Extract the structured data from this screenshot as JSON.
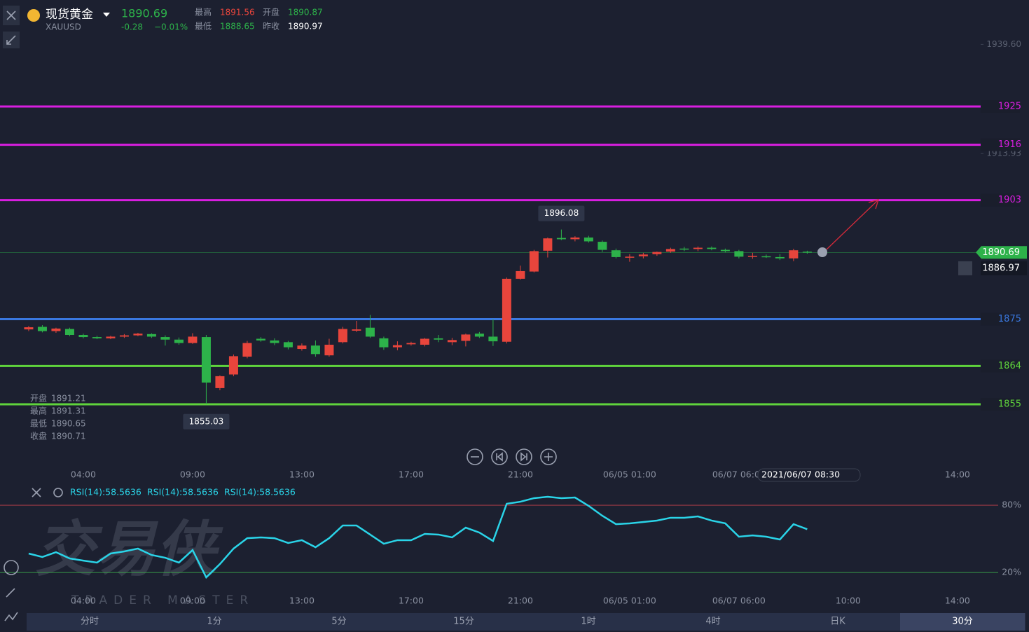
{
  "header": {
    "symbol": "现货黄金",
    "code": "XAUUSD",
    "change": -0.28,
    "change_pct": "−0.01%",
    "high_label": "最高",
    "high": 1891.56,
    "open_label": "开盘",
    "open": 1890.87,
    "low_label": "最低",
    "low": 1888.65,
    "prev_close_label": "昨收",
    "prev_close": 1890.97
  },
  "info": {
    "open_label": "开盘",
    "open": 1891.21,
    "high_label": "最高",
    "high": 1891.31,
    "low_label": "最低",
    "low": 1890.65,
    "close_label": "收盘",
    "close": 1890.71
  },
  "watermark": {
    "title": "交易侠",
    "subtitle": "TRADER MASTER"
  },
  "chart_data": {
    "type": "candlestick",
    "up_color": "#e8453c",
    "down_color": "#2db24a",
    "xlim": [
      -2.1,
      69.7
    ],
    "ylim": [
      1840.5,
      1950.04
    ],
    "xticks": [
      {
        "value": 4,
        "label": "04:00"
      },
      {
        "value": 12,
        "label": "09:00"
      },
      {
        "value": 20,
        "label": "13:00"
      },
      {
        "value": 28,
        "label": "17:00"
      },
      {
        "value": 36,
        "label": "21:00"
      },
      {
        "value": 44,
        "label": "06/05 01:00"
      },
      {
        "value": 52,
        "label": "06/07 06:00"
      },
      {
        "value": 60,
        "label": "10:00"
      },
      {
        "value": 68,
        "label": "14:00"
      }
    ],
    "yticks": [
      {
        "value": 1939.6,
        "label": "1939.60"
      },
      1913.93
    ],
    "last_price": 1890.69,
    "alert_price": 1886.97,
    "crosshair_label": "2021/06/07 08:30",
    "levels": [
      {
        "value": 1925,
        "color": "#d81ee0"
      },
      {
        "value": 1916,
        "color": "#d81ee0"
      },
      {
        "value": 1903,
        "color": "#d81ee0"
      },
      {
        "value": 1875,
        "color": "#3a78e0"
      },
      {
        "value": 1864,
        "color": "#5fd43c"
      },
      {
        "value": 1855,
        "color": "#5fd43c"
      }
    ],
    "annotations": [
      {
        "index": 39,
        "value": 1896.08
      },
      {
        "index": 13,
        "value": 1855.03
      }
    ],
    "ohlc": [
      [
        1872.6,
        1873.4,
        1872.2,
        1873.1
      ],
      [
        1873.2,
        1873.6,
        1871.9,
        1872.2
      ],
      [
        1872.2,
        1873.0,
        1871.8,
        1872.8
      ],
      [
        1872.7,
        1873.0,
        1871.0,
        1871.3
      ],
      [
        1871.3,
        1871.6,
        1870.5,
        1870.8
      ],
      [
        1870.8,
        1871.1,
        1870.3,
        1870.5
      ],
      [
        1870.5,
        1871.1,
        1870.3,
        1870.9
      ],
      [
        1870.9,
        1871.5,
        1870.6,
        1871.2
      ],
      [
        1871.2,
        1871.8,
        1871.0,
        1871.6
      ],
      [
        1871.5,
        1871.7,
        1870.6,
        1870.9
      ],
      [
        1870.8,
        1871.2,
        1868.8,
        1870.2
      ],
      [
        1870.2,
        1870.7,
        1869.0,
        1869.4
      ],
      [
        1869.4,
        1871.7,
        1869.2,
        1870.9
      ],
      [
        1870.8,
        1871.3,
        1855.03,
        1860.1
      ],
      [
        1858.8,
        1861.8,
        1858.3,
        1861.6
      ],
      [
        1862.0,
        1866.7,
        1861.6,
        1866.3
      ],
      [
        1866.2,
        1869.9,
        1865.8,
        1869.4
      ],
      [
        1870.4,
        1870.8,
        1869.7,
        1870.0
      ],
      [
        1870.0,
        1870.5,
        1868.9,
        1869.4
      ],
      [
        1869.6,
        1869.9,
        1867.9,
        1868.4
      ],
      [
        1868.0,
        1869.3,
        1867.6,
        1868.8
      ],
      [
        1868.8,
        1870.0,
        1866.2,
        1866.8
      ],
      [
        1866.5,
        1870.4,
        1866.2,
        1869.0
      ],
      [
        1869.6,
        1873.2,
        1869.3,
        1872.7
      ],
      [
        1872.3,
        1874.6,
        1872.0,
        1872.6
      ],
      [
        1873.0,
        1876.0,
        1870.6,
        1870.9
      ],
      [
        1870.5,
        1870.9,
        1867.8,
        1868.4
      ],
      [
        1868.4,
        1869.8,
        1867.7,
        1868.9
      ],
      [
        1869.1,
        1869.7,
        1868.8,
        1869.4
      ],
      [
        1869.0,
        1870.6,
        1868.6,
        1870.4
      ],
      [
        1870.5,
        1871.3,
        1869.6,
        1870.2
      ],
      [
        1869.6,
        1870.6,
        1868.9,
        1870.1
      ],
      [
        1869.9,
        1871.6,
        1868.6,
        1871.4
      ],
      [
        1871.6,
        1872.0,
        1870.6,
        1870.9
      ],
      [
        1870.9,
        1875.0,
        1868.7,
        1869.8
      ],
      [
        1869.7,
        1884.8,
        1869.3,
        1884.5
      ],
      [
        1884.5,
        1887.6,
        1884.3,
        1886.3
      ],
      [
        1886.2,
        1891.3,
        1886.0,
        1891.0
      ],
      [
        1891.1,
        1894.2,
        1889.5,
        1894.0
      ],
      [
        1894.1,
        1896.08,
        1893.6,
        1893.8
      ],
      [
        1893.8,
        1894.5,
        1893.3,
        1894.2
      ],
      [
        1894.2,
        1894.6,
        1893.0,
        1893.3
      ],
      [
        1893.2,
        1893.5,
        1890.8,
        1891.3
      ],
      [
        1891.2,
        1891.6,
        1889.3,
        1889.6
      ],
      [
        1889.5,
        1890.3,
        1888.5,
        1889.7
      ],
      [
        1889.8,
        1890.6,
        1889.3,
        1890.2
      ],
      [
        1890.3,
        1890.9,
        1889.9,
        1890.8
      ],
      [
        1890.9,
        1891.8,
        1890.6,
        1891.5
      ],
      [
        1891.6,
        1892.0,
        1891.0,
        1891.5
      ],
      [
        1891.5,
        1892.1,
        1891.0,
        1891.8
      ],
      [
        1891.8,
        1892.1,
        1891.2,
        1891.5
      ],
      [
        1891.3,
        1891.6,
        1890.7,
        1891.0
      ],
      [
        1891.0,
        1891.3,
        1889.3,
        1889.7
      ],
      [
        1889.7,
        1890.6,
        1889.2,
        1889.9
      ],
      [
        1889.8,
        1890.2,
        1889.4,
        1889.6
      ],
      [
        1889.6,
        1890.3,
        1888.9,
        1889.3
      ],
      [
        1889.3,
        1891.56,
        1888.65,
        1891.2
      ],
      [
        1890.87,
        1891.1,
        1890.4,
        1890.69
      ]
    ],
    "rsi": {
      "legend": [
        "RSI(14):58.5636",
        "RSI(14):58.5636",
        "RSI(14):58.5636"
      ],
      "color": "#2ad4e8",
      "ylim": [
        -13.1,
        99.4
      ],
      "yticks": [
        {
          "value": 80,
          "label": "80%",
          "color": "#c0404a"
        },
        {
          "value": 20,
          "label": "20%",
          "color": "#3cae4a"
        }
      ],
      "values": [
        36.9,
        33.8,
        38.1,
        32.5,
        30.6,
        28.8,
        36.9,
        38.8,
        41.3,
        35.6,
        33.1,
        28.8,
        40.0,
        15.6,
        27.5,
        41.3,
        50.6,
        51.3,
        50.6,
        46.3,
        48.8,
        42.5,
        50.6,
        61.9,
        61.9,
        53.8,
        45.6,
        48.8,
        48.8,
        54.4,
        53.8,
        51.3,
        60.0,
        55.6,
        48.1,
        81.3,
        83.1,
        86.3,
        87.5,
        86.3,
        86.9,
        79.4,
        70.6,
        63.1,
        63.8,
        65.0,
        66.3,
        68.8,
        68.8,
        70.0,
        66.3,
        63.8,
        51.9,
        53.1,
        51.9,
        49.4,
        63.1,
        58.5636
      ]
    }
  },
  "tabs": [
    "分时",
    "1分",
    "5分",
    "15分",
    "1时",
    "4时",
    "日K",
    "30分"
  ]
}
